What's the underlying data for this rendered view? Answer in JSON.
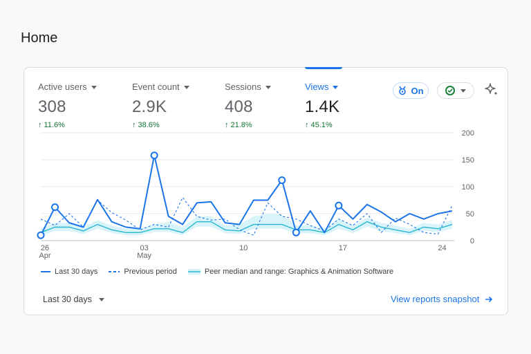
{
  "page": {
    "title": "Home"
  },
  "metrics": [
    {
      "label": "Active users",
      "value": "308",
      "change": "11.6%"
    },
    {
      "label": "Event count",
      "value": "2.9K",
      "change": "38.6%"
    },
    {
      "label": "Sessions",
      "value": "408",
      "change": "21.8%"
    },
    {
      "label": "Views",
      "value": "1.4K",
      "change": "45.1%"
    }
  ],
  "controls": {
    "insights_label": "On"
  },
  "colors": {
    "accent": "#1a73e8",
    "positive": "#137333",
    "peer": "#4ecde6"
  },
  "legend": {
    "current": "Last 30 days",
    "previous": "Previous period",
    "peer": "Peer median and range: Graphics & Animation Software"
  },
  "footer": {
    "range_label": "Last 30 days",
    "link_label": "View reports snapshot"
  },
  "chart_data": {
    "type": "line",
    "xtick_labels": [
      {
        "day": 0,
        "label": "26",
        "sub": "Apr"
      },
      {
        "day": 7,
        "label": "03",
        "sub": "May"
      },
      {
        "day": 14,
        "label": "10",
        "sub": ""
      },
      {
        "day": 21,
        "label": "17",
        "sub": ""
      },
      {
        "day": 28,
        "label": "24",
        "sub": ""
      }
    ],
    "yticks": [
      0,
      50,
      100,
      150,
      200
    ],
    "ylim": [
      0,
      200
    ],
    "days": 30,
    "series": [
      {
        "name": "Last 30 days",
        "values": [
          10,
          62,
          33,
          25,
          76,
          35,
          25,
          22,
          158,
          45,
          30,
          70,
          72,
          33,
          30,
          75,
          75,
          112,
          15,
          55,
          15,
          65,
          40,
          67,
          53,
          35,
          50,
          40,
          50,
          55
        ],
        "markers": [
          0,
          1,
          8,
          17,
          18,
          21
        ]
      },
      {
        "name": "Previous period",
        "values": [
          40,
          28,
          50,
          25,
          75,
          52,
          38,
          20,
          30,
          25,
          80,
          45,
          38,
          40,
          20,
          10,
          70,
          45,
          40,
          28,
          18,
          40,
          28,
          50,
          15,
          42,
          30,
          15,
          12,
          65
        ]
      },
      {
        "name": "Peer median",
        "values": [
          15,
          25,
          25,
          18,
          30,
          20,
          15,
          15,
          22,
          22,
          15,
          35,
          35,
          20,
          18,
          30,
          30,
          30,
          20,
          20,
          15,
          30,
          20,
          35,
          25,
          20,
          15,
          25,
          22,
          30
        ],
        "range_low": [
          8,
          18,
          18,
          12,
          22,
          14,
          10,
          10,
          16,
          16,
          10,
          26,
          26,
          14,
          12,
          22,
          22,
          22,
          14,
          14,
          10,
          22,
          14,
          26,
          18,
          14,
          10,
          18,
          16,
          22
        ],
        "range_high": [
          22,
          33,
          33,
          25,
          38,
          28,
          22,
          22,
          30,
          35,
          25,
          45,
          45,
          28,
          30,
          45,
          50,
          48,
          28,
          28,
          22,
          40,
          28,
          42,
          33,
          28,
          22,
          33,
          30,
          38
        ]
      }
    ]
  }
}
